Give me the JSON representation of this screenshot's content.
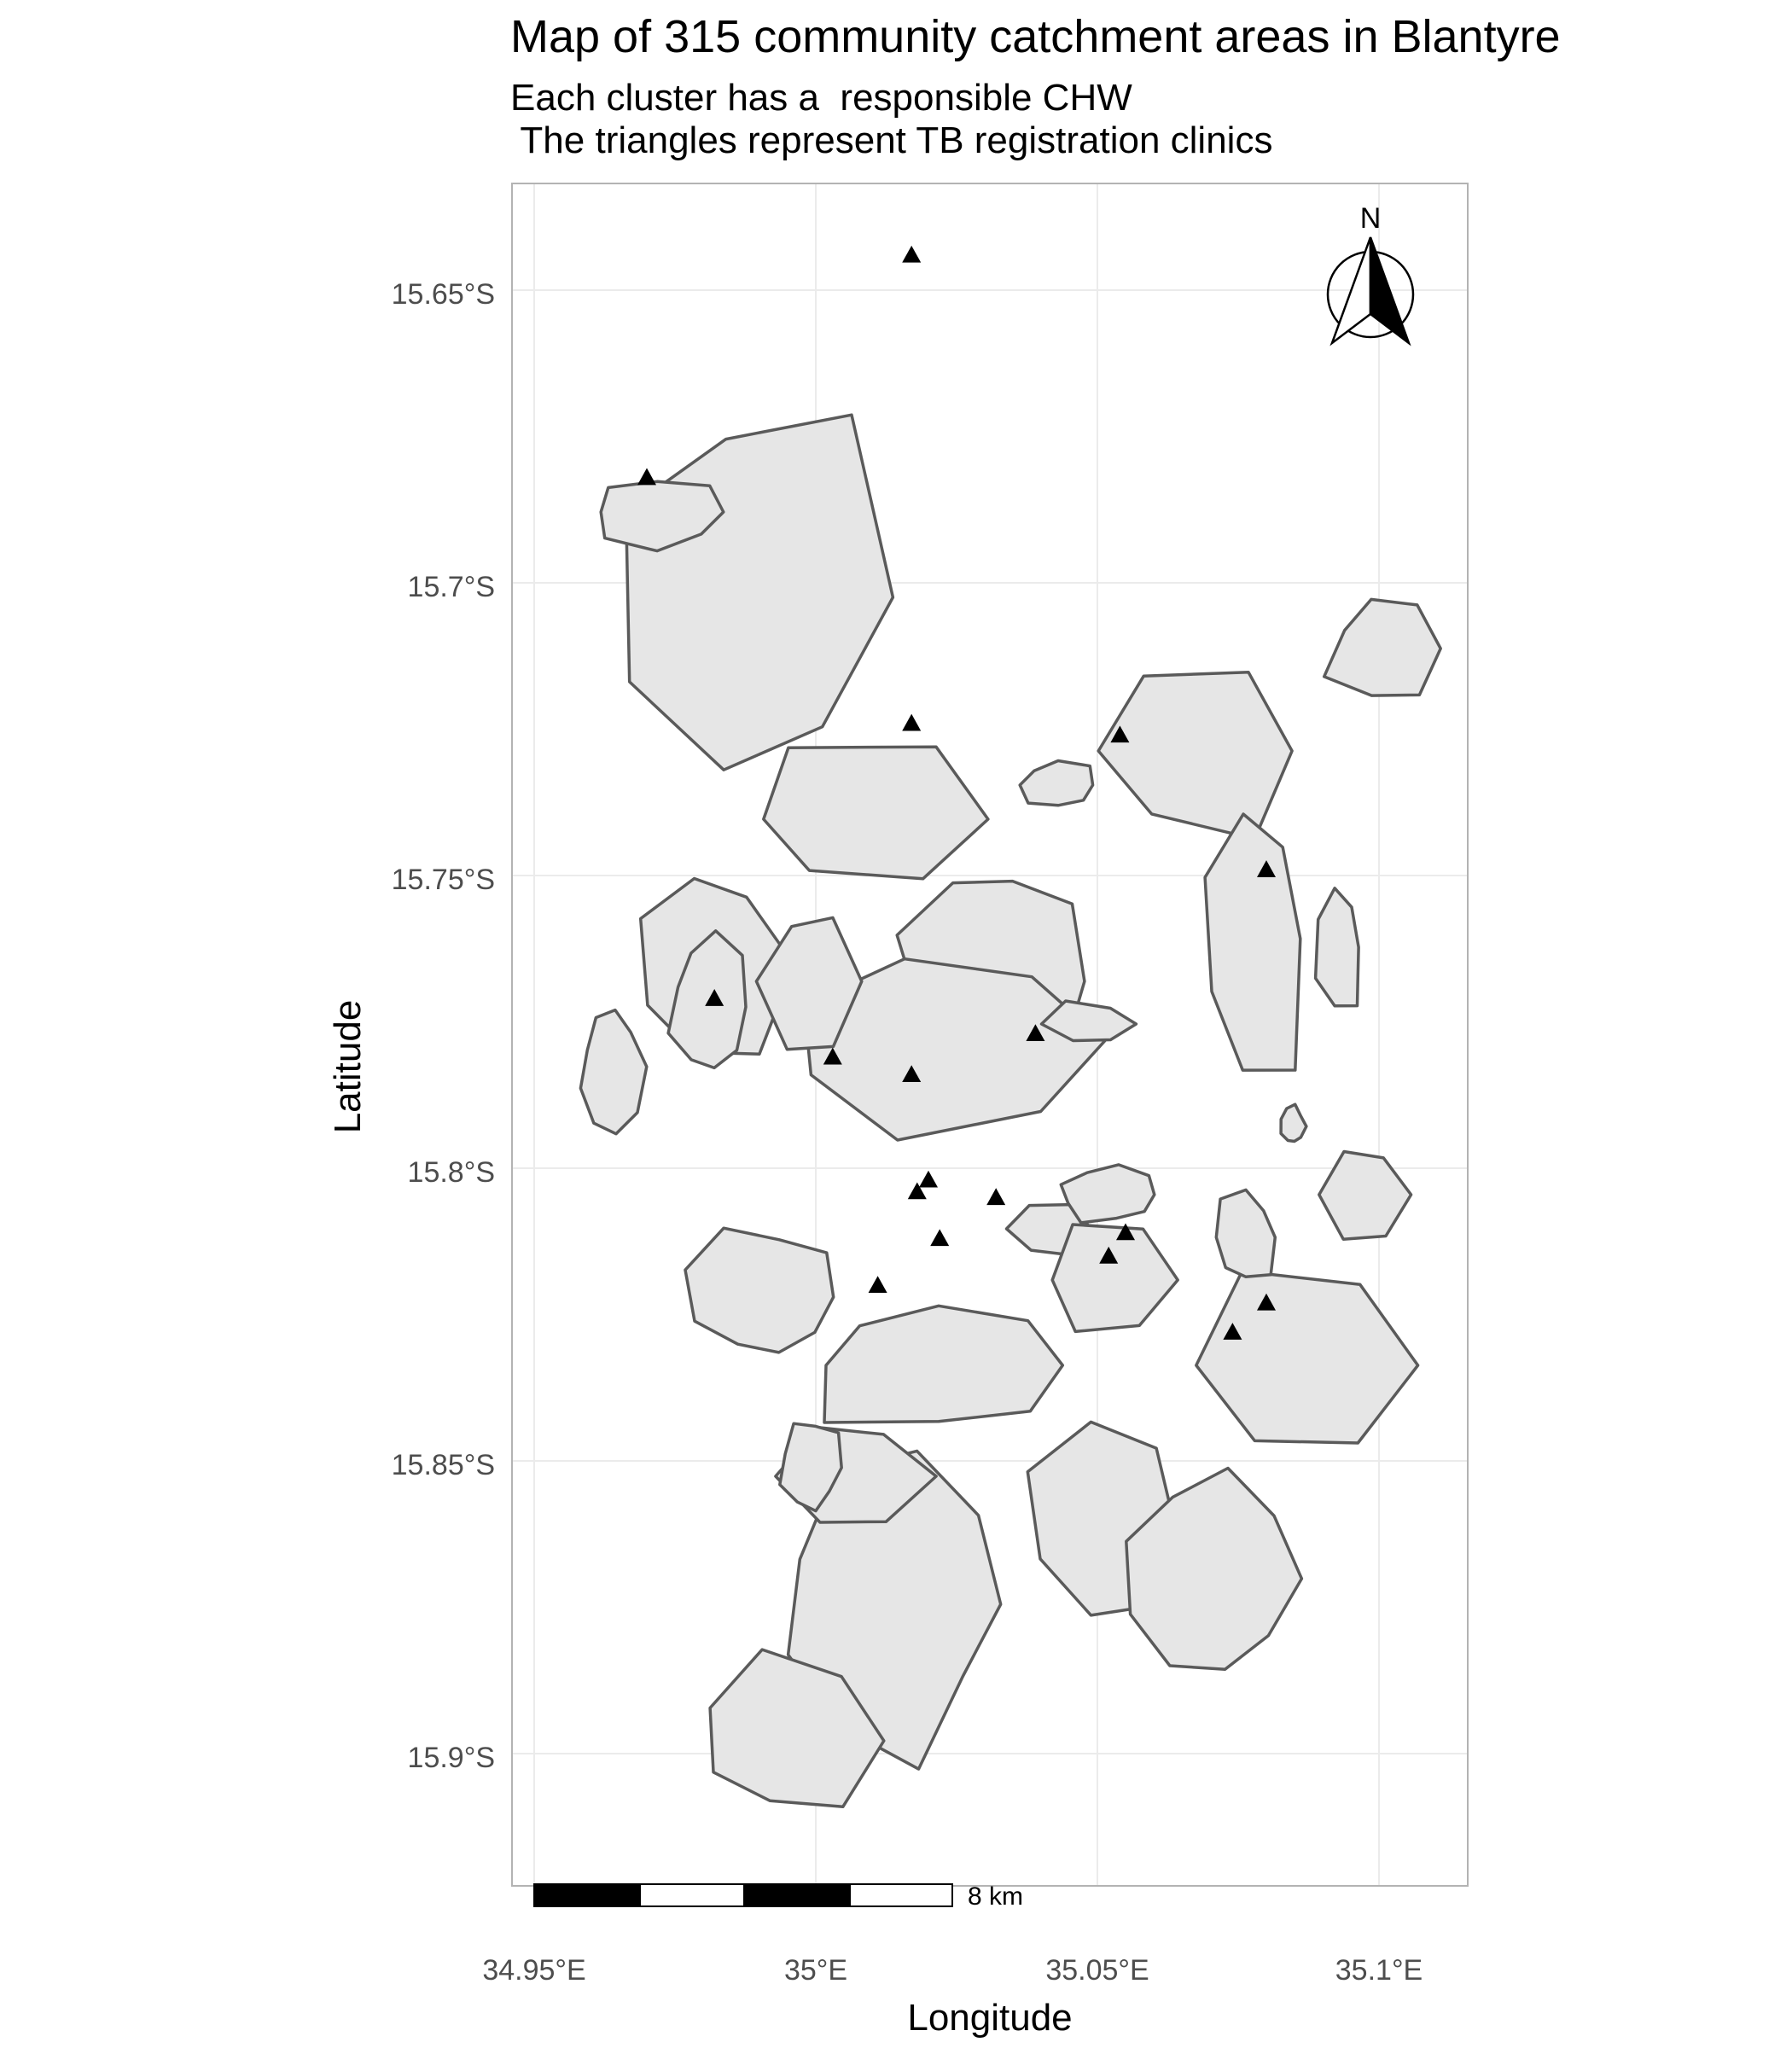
{
  "title": "Map of 315 community catchment areas in Blantyre",
  "subtitle_line1": "Each cluster has a  responsible CHW",
  "subtitle_line2": " The triangles represent TB registration clinics",
  "xlabel": "Longitude",
  "ylabel": "Latitude",
  "north_label": "N",
  "scalebar_label": "8 km",
  "colors": {
    "area_fill": "#e6e6e6",
    "area_stroke": "#5a5a5a",
    "grid": "#ebebeb",
    "panel_border": "#b3b3b3",
    "clinic": "#000000"
  },
  "chart_data": {
    "type": "map",
    "title": "Map of 315 community catchment areas in Blantyre",
    "subtitle": [
      "Each cluster has a  responsible CHW",
      " The triangles represent TB registration clinics"
    ],
    "xlabel": "Longitude",
    "ylabel": "Latitude",
    "x_ticks": [
      {
        "value": 34.95,
        "label": "34.95°E"
      },
      {
        "value": 35.0,
        "label": "35°E"
      },
      {
        "value": 35.05,
        "label": "35.05°E"
      },
      {
        "value": 35.1,
        "label": "35.1°E"
      }
    ],
    "y_ticks": [
      {
        "value": -15.65,
        "label": "15.65°S"
      },
      {
        "value": -15.7,
        "label": "15.7°S"
      },
      {
        "value": -15.75,
        "label": "15.75°S"
      },
      {
        "value": -15.8,
        "label": "15.8°S"
      },
      {
        "value": -15.85,
        "label": "15.85°S"
      },
      {
        "value": -15.9,
        "label": "15.9°S"
      }
    ],
    "xlim": [
      34.946,
      35.118
    ],
    "ylim": [
      -15.919,
      -15.631
    ],
    "grid": true,
    "catchment_area_count": 315,
    "clinics": [
      {
        "lon": 35.017,
        "lat": -15.644
      },
      {
        "lon": 34.97,
        "lat": -15.682
      },
      {
        "lon": 35.017,
        "lat": -15.724
      },
      {
        "lon": 35.054,
        "lat": -15.726
      },
      {
        "lon": 35.08,
        "lat": -15.749
      },
      {
        "lon": 34.982,
        "lat": -15.771
      },
      {
        "lon": 35.003,
        "lat": -15.781
      },
      {
        "lon": 35.017,
        "lat": -15.784
      },
      {
        "lon": 35.039,
        "lat": -15.777
      },
      {
        "lon": 35.02,
        "lat": -15.802
      },
      {
        "lon": 35.018,
        "lat": -15.804
      },
      {
        "lon": 35.032,
        "lat": -15.805
      },
      {
        "lon": 35.022,
        "lat": -15.812
      },
      {
        "lon": 35.055,
        "lat": -15.811
      },
      {
        "lon": 35.052,
        "lat": -15.815
      },
      {
        "lon": 35.011,
        "lat": -15.82
      },
      {
        "lon": 35.08,
        "lat": -15.823
      },
      {
        "lon": 35.074,
        "lat": -15.828
      }
    ],
    "scalebar": {
      "label": "8 km",
      "segments": 4
    }
  }
}
